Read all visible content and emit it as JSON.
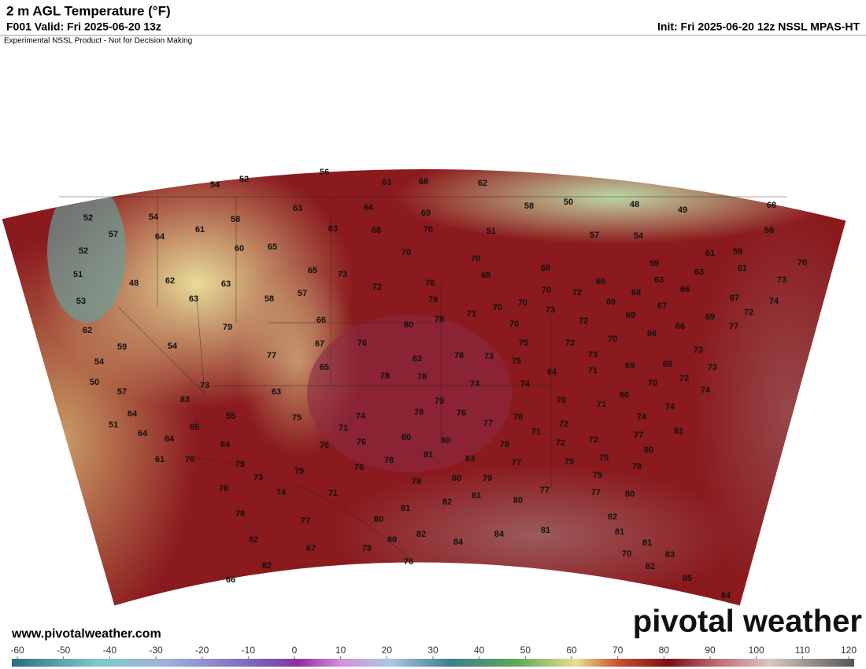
{
  "header": {
    "title": "2 m AGL Temperature (°F)",
    "valid": "F001 Valid: Fri 2025-06-20 13z",
    "disclaimer": "Experimental NSSL Product - Not for Decision Making",
    "init": "Init: Fri 2025-06-20 12z NSSL MPAS-HT"
  },
  "map": {
    "station_temps": [
      56,
      63,
      68,
      62,
      54,
      52,
      50,
      48,
      49,
      68,
      58,
      52,
      54,
      57,
      64,
      61,
      58,
      63,
      64,
      69,
      63,
      68,
      70,
      51,
      59,
      57,
      54,
      52,
      60,
      65,
      70,
      70,
      61,
      59,
      51,
      48,
      62,
      63,
      65,
      73,
      72,
      76,
      68,
      68,
      59,
      70,
      61,
      63,
      53,
      63,
      58,
      57,
      79,
      70,
      72,
      66,
      68,
      63,
      66,
      73,
      74,
      67,
      62,
      79,
      66,
      80,
      71,
      70,
      78,
      70,
      73,
      69,
      69,
      67,
      72,
      69,
      59,
      54,
      67,
      76,
      70,
      72,
      70,
      66,
      66,
      73,
      77,
      54,
      77,
      65,
      83,
      78,
      73,
      75,
      73,
      73,
      68,
      73,
      50,
      73,
      78,
      78,
      74,
      75,
      64,
      71,
      69,
      72,
      70,
      57,
      83,
      63,
      74,
      66,
      64,
      55,
      75,
      74,
      78,
      79,
      76,
      70,
      71,
      74,
      74,
      74,
      51,
      85,
      77,
      76,
      71,
      71,
      72,
      72,
      77,
      81,
      64,
      84,
      84,
      76,
      76,
      80,
      80,
      81,
      79,
      72,
      80,
      61,
      76,
      79,
      73,
      79,
      76,
      78,
      83,
      77,
      75,
      75,
      78,
      76,
      74,
      71,
      78,
      80,
      79,
      75,
      81,
      82,
      80,
      77,
      77,
      80,
      78,
      77,
      80,
      81,
      82,
      82,
      67,
      78,
      80,
      82,
      84,
      84,
      81,
      81,
      81,
      82,
      76,
      70,
      83,
      82,
      85,
      66,
      84
    ]
  },
  "footer": {
    "url": "www.pivotalweather.com",
    "logo": "pivotal weather"
  },
  "colorbar": {
    "ticks": [
      -60,
      -50,
      -40,
      -30,
      -20,
      -10,
      0,
      10,
      20,
      30,
      40,
      50,
      60,
      70,
      80,
      90,
      100,
      110,
      120
    ]
  }
}
